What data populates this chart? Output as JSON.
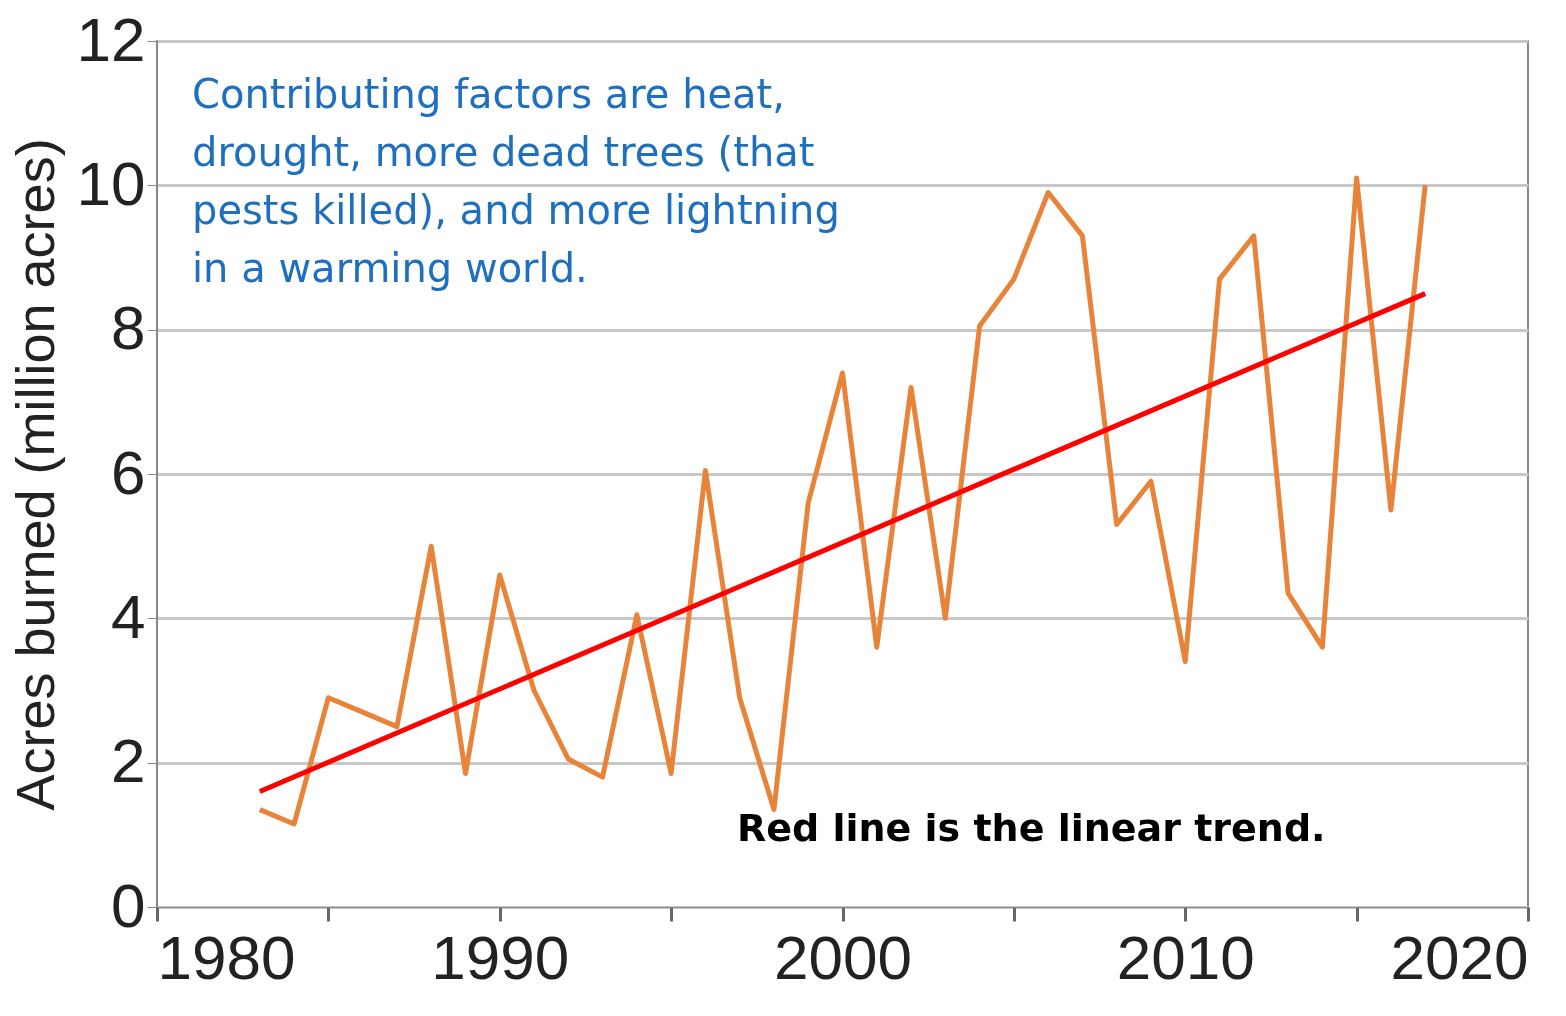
{
  "chart_data": {
    "type": "line",
    "ylabel": "Acres burned (million acres)",
    "x": [
      1983,
      1984,
      1985,
      1986,
      1987,
      1988,
      1989,
      1990,
      1991,
      1992,
      1993,
      1994,
      1995,
      1996,
      1997,
      1998,
      1999,
      2000,
      2001,
      2002,
      2003,
      2004,
      2005,
      2006,
      2007,
      2008,
      2009,
      2010,
      2011,
      2012,
      2013,
      2014,
      2015,
      2016,
      2017
    ],
    "series": [
      {
        "color": "#e8843a",
        "values": [
          1.35,
          1.15,
          2.9,
          2.7,
          2.5,
          5.0,
          1.85,
          4.6,
          3.0,
          2.05,
          1.8,
          4.05,
          1.85,
          6.05,
          2.9,
          1.35,
          5.6,
          7.4,
          3.6,
          7.2,
          4.0,
          8.05,
          8.7,
          9.9,
          9.3,
          5.3,
          5.9,
          3.4,
          8.7,
          9.3,
          4.35,
          3.6,
          10.1,
          5.5,
          10.0
        ]
      },
      {
        "type": "line",
        "color": "#ff0000",
        "x": [
          1983,
          2017
        ],
        "values": [
          1.6,
          8.5
        ]
      }
    ],
    "xlim": [
      1980,
      2020
    ],
    "xticks": [
      1980,
      {
        "value": 1985,
        "label": null
      },
      1990,
      {
        "value": 1995,
        "label": null
      },
      2000,
      {
        "value": 2005,
        "label": null
      },
      2010,
      {
        "value": 2015,
        "label": null
      },
      2020
    ],
    "ylim": [
      0,
      12
    ],
    "yticks": [
      0,
      2,
      4,
      6,
      8,
      10,
      12
    ],
    "grid": "y",
    "annotations": [
      "Contributing factors are heat,\ndrought, more dead trees (that\npests killed), and more lightning\nin a warming world.",
      "Red line is the linear trend."
    ]
  }
}
